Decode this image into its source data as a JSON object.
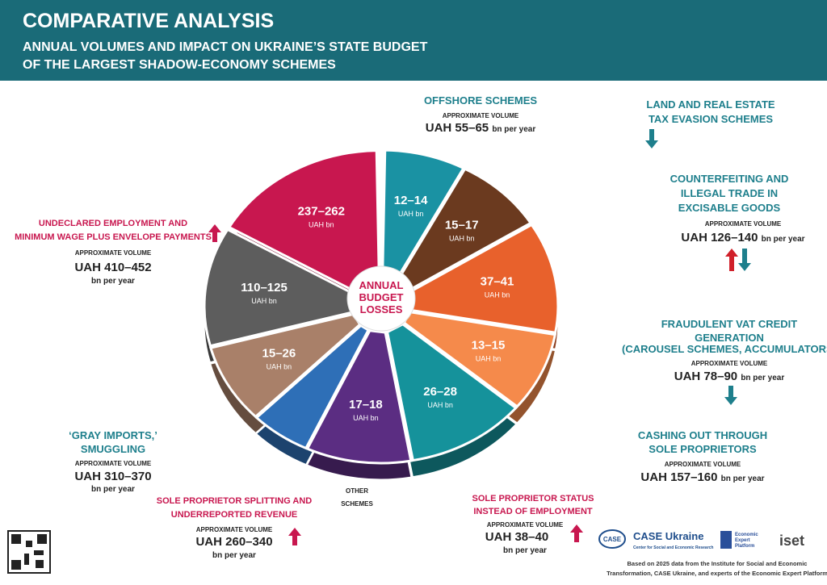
{
  "header": {
    "title": "COMPARATIVE ANALYSIS",
    "subtitle": [
      "ANNUAL VOLUMES AND IMPACT ON UKRAINE’S STATE BUDGET",
      "OF THE LARGEST SHADOW-ECONOMY SCHEMES"
    ]
  },
  "center_label": [
    "ANNUAL",
    "BUDGET",
    "LOSSES"
  ],
  "slices": [
    {
      "label": "12–14",
      "unit": "UAH bn"
    },
    {
      "label": "15–17",
      "unit": "UAH bn"
    },
    {
      "label": "37–41",
      "unit": "UAH bn"
    },
    {
      "label": "13–15",
      "unit": "UAH bn"
    },
    {
      "label": "26–28",
      "unit": "UAH bn"
    },
    {
      "label": "17–18",
      "unit": "UAH bn"
    },
    {
      "label": "15–26",
      "unit": "UAH bn"
    },
    {
      "label": "110–125",
      "unit": "UAH bn"
    },
    {
      "label": "237–262",
      "unit": "UAH bn"
    }
  ],
  "schemes": {
    "offshore": {
      "title": [
        "OFFSHORE SCHEMES"
      ],
      "volume_label": "APPROXIMATE VOLUME",
      "volume": "UAH 55–65",
      "period": "bn per year"
    },
    "land": {
      "title": [
        "LAND AND REAL ESTATE",
        "TAX EVASION SCHEMES"
      ]
    },
    "counterfeiting": {
      "title": [
        "COUNTERFEITING AND",
        "ILLEGAL TRADE IN",
        "EXCISABLE GOODS"
      ],
      "volume_label": "APPROXIMATE VOLUME",
      "volume": "UAH 126–140",
      "period": "bn per year"
    },
    "vat": {
      "title": [
        "FRAUDULENT VAT CREDIT",
        "GENERATION"
      ],
      "note": "(CAROUSEL SCHEMES, ACCUMULATORS)",
      "volume_label": "APPROXIMATE VOLUME",
      "volume": "UAH 78–90",
      "period": "bn per year"
    },
    "cashing_out": {
      "title": [
        "CASHING OUT THROUGH",
        "SOLE PROPRIETORS"
      ],
      "volume_label": "APPROXIMATE VOLUME",
      "volume": "UAH 157–160",
      "period": "bn per year"
    },
    "sp_status": {
      "title": [
        "SOLE PROPRIETOR STATUS",
        "INSTEAD OF EMPLOYMENT"
      ],
      "volume_label": "APPROXIMATE VOLUME",
      "volume": "UAH 38–40",
      "period": "bn per year"
    },
    "other": {
      "title": [
        "OTHER",
        "SCHEMES"
      ]
    },
    "sp_splitting": {
      "title": [
        "SOLE PROPRIETOR SPLITTING AND",
        "UNDERREPORTED REVENUE"
      ],
      "volume_label": "APPROXIMATE VOLUME",
      "volume": "UAH 260–340",
      "period": "bn per year"
    },
    "gray_imports": {
      "title": [
        "‘GRAY IMPORTS,’",
        "SMUGGLING"
      ],
      "volume_label": "APPROXIMATE VOLUME",
      "volume": "UAH 310–370",
      "period": "bn per year"
    },
    "undeclared": {
      "title": [
        "UNDECLARED EMPLOYMENT AND",
        "MINIMUM WAGE PLUS ENVELOPE PAYMENTS"
      ],
      "volume_label": "APPROXIMATE VOLUME",
      "volume": "UAH 410–452",
      "period": "bn per year"
    }
  },
  "footer": {
    "case_name": "CASE Ukraine",
    "case_sub": "Center for Social and Economic Research",
    "case_short": "CASE",
    "eep": [
      "Economic",
      "Expert",
      "Platform"
    ],
    "iset": "iset",
    "source": [
      "Based on 2025 data from the Institute for Social and Economic",
      "Transformation, CASE Ukraine, and experts of the Economic Expert Platform"
    ]
  }
}
